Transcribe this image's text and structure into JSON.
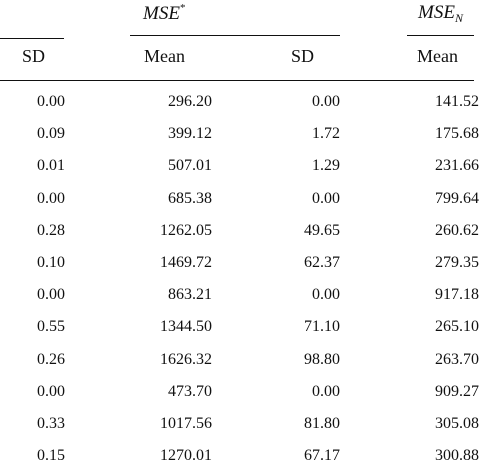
{
  "header": {
    "mse_star_label": "MSE",
    "mse_star_sup": "*",
    "mse_n_label": "MSE",
    "mse_n_sub": "N"
  },
  "subheader": {
    "sd_left": "SD",
    "mean": "Mean",
    "sd": "SD",
    "mean_right": "Mean"
  },
  "rows": [
    {
      "sd_left": "0.00",
      "mean": "296.20",
      "sd": "0.00",
      "mean_right": "141.52"
    },
    {
      "sd_left": "0.09",
      "mean": "399.12",
      "sd": "1.72",
      "mean_right": "175.68"
    },
    {
      "sd_left": "0.01",
      "mean": "507.01",
      "sd": "1.29",
      "mean_right": "231.66"
    },
    {
      "sd_left": "0.00",
      "mean": "685.38",
      "sd": "0.00",
      "mean_right": "799.64"
    },
    {
      "sd_left": "0.28",
      "mean": "1262.05",
      "sd": "49.65",
      "mean_right": "260.62"
    },
    {
      "sd_left": "0.10",
      "mean": "1469.72",
      "sd": "62.37",
      "mean_right": "279.35"
    },
    {
      "sd_left": "0.00",
      "mean": "863.21",
      "sd": "0.00",
      "mean_right": "917.18"
    },
    {
      "sd_left": "0.55",
      "mean": "1344.50",
      "sd": "71.10",
      "mean_right": "265.10"
    },
    {
      "sd_left": "0.26",
      "mean": "1626.32",
      "sd": "98.80",
      "mean_right": "263.70"
    },
    {
      "sd_left": "0.00",
      "mean": "473.70",
      "sd": "0.00",
      "mean_right": "909.27"
    },
    {
      "sd_left": "0.33",
      "mean": "1017.56",
      "sd": "81.80",
      "mean_right": "305.08"
    },
    {
      "sd_left": "0.15",
      "mean": "1270.01",
      "sd": "67.17",
      "mean_right": "300.88"
    }
  ]
}
